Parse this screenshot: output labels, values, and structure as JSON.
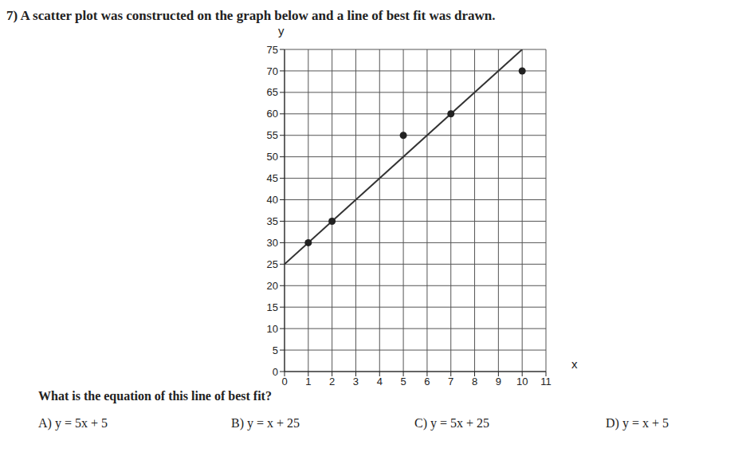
{
  "title": "7) A scatter plot was constructed on the graph below and a line of best fit was drawn.",
  "question": "What is the equation of this line of best fit?",
  "choices": [
    "A) y = 5x + 5",
    "B) y = x + 25",
    "C) y = 5x + 25",
    "D) y = x + 5"
  ],
  "chart_data": {
    "type": "scatter",
    "x_label": "x",
    "y_label": "y",
    "xlim": [
      0,
      11
    ],
    "ylim": [
      0,
      75
    ],
    "xticks": [
      0,
      1,
      2,
      3,
      4,
      5,
      6,
      7,
      8,
      9,
      10,
      11
    ],
    "yticks": [
      0,
      5,
      10,
      15,
      20,
      25,
      30,
      35,
      40,
      45,
      50,
      55,
      60,
      65,
      70,
      75
    ],
    "grid": true,
    "series": [
      {
        "type": "scatter",
        "x": [
          1,
          2,
          5,
          7,
          10
        ],
        "values": [
          30,
          35,
          55,
          60,
          70
        ],
        "color": "#222222",
        "marker": "circle"
      },
      {
        "type": "line",
        "x": [
          0,
          10
        ],
        "values": [
          25,
          75
        ],
        "color": "#333333",
        "line_style": "solid"
      }
    ]
  }
}
